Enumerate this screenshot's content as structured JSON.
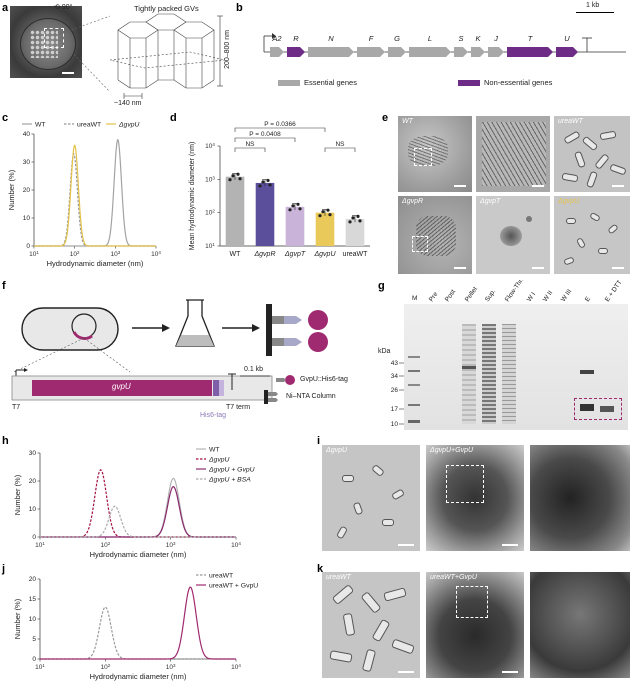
{
  "panels": {
    "a": "a",
    "b": "b",
    "c": "c",
    "d": "d",
    "e": "e",
    "f": "f",
    "g": "g",
    "h": "h",
    "i": "i",
    "j": "j",
    "k": "k"
  },
  "a": {
    "rotate": "90°",
    "gv_title": "Tightly packed GVs",
    "height_label": "200–800 nm",
    "width_label": "~140 nm"
  },
  "b": {
    "scale": "1 kb",
    "genes": [
      "A2",
      "R",
      "N",
      "F",
      "G",
      "L",
      "S",
      "K",
      "J",
      "T",
      "U"
    ],
    "legend_essential": "Essential genes",
    "legend_nonessential": "Non-essential genes",
    "colors": {
      "essential": "#a8a8a8",
      "nonessential": "#6d2c86"
    }
  },
  "c": {
    "chart_data": {
      "type": "line",
      "xscale": "log",
      "xlim": [
        10,
        10000
      ],
      "ylim": [
        0,
        40
      ],
      "xlabel": "Hydrodynamic diameter (nm)",
      "ylabel": "Number (%)",
      "xticks": [
        "10^1",
        "10^2",
        "10^3",
        "10^4"
      ],
      "yticks": [
        "0",
        "10",
        "20",
        "30",
        "40"
      ],
      "series": [
        {
          "name": "WT",
          "peak": 1150,
          "height": 38,
          "color": "#a3a3a3",
          "dash": false
        },
        {
          "name": "ureaWT",
          "peak": 95,
          "height": 33,
          "color": "#9a9a9a",
          "dash": true
        },
        {
          "name": "ΔgvpU",
          "peak": 100,
          "height": 36,
          "color": "#e3c24a",
          "dash": false
        }
      ]
    }
  },
  "d": {
    "chart_data": {
      "type": "bar",
      "yscale": "log",
      "ylim": [
        10,
        10000
      ],
      "ylabel": "Mean hydrodynamic diameter (nm)",
      "yticks": [
        "10^1",
        "10^2",
        "10^3",
        "10^4"
      ],
      "categories": [
        "WT",
        "ΔgvpR",
        "ΔgvpT",
        "ΔgvpU",
        "ureaWT"
      ],
      "values": [
        1200,
        780,
        150,
        100,
        65
      ],
      "colors": [
        "#b3b3b3",
        "#5b4f9c",
        "#c9b3d9",
        "#e8c959",
        "#d8d8d8"
      ],
      "annotations": [
        "P = 0.0366",
        "P = 0.0408",
        "NS",
        "NS"
      ]
    }
  },
  "e": {
    "captions": [
      "WT",
      "",
      "ureaWT",
      "ΔgvpR",
      "ΔgvpT",
      "ΔgvpU"
    ]
  },
  "f": {
    "gene": "gvpU",
    "his_tag": "His6-tag",
    "t7": "T7",
    "t7term": "T7 term",
    "scale": "0.1 kb",
    "legend_protein": "GvpU::His6-tag",
    "legend_column": "Ni–NTA Column"
  },
  "g": {
    "lanes": [
      "M",
      "Pre",
      "Post",
      "Pellet",
      "Sup.",
      "Flow-Thru",
      "W I",
      "W II",
      "W III",
      "E",
      "E + DTT"
    ],
    "kda_label": "kDa",
    "markers": [
      "43",
      "34",
      "26",
      "17",
      "10"
    ]
  },
  "h": {
    "chart_data": {
      "type": "line",
      "xscale": "log",
      "xlim": [
        10,
        10000
      ],
      "ylim": [
        0,
        30
      ],
      "xlabel": "Hydrodynamic diameter (nm)",
      "ylabel": "Number (%)",
      "xticks": [
        "10^1",
        "10^2",
        "10^3",
        "10^4"
      ],
      "yticks": [
        "0",
        "10",
        "20",
        "30"
      ],
      "series": [
        {
          "name": "WT",
          "peak": 1100,
          "height": 21,
          "color": "#b3b3b3",
          "dash": false
        },
        {
          "name": "ΔgvpU",
          "peak": 85,
          "height": 24,
          "color": "#a3123f",
          "dash": true
        },
        {
          "name": "ΔgvpU + GvpU",
          "peak": 1100,
          "height": 18,
          "color": "#8a2a6e",
          "dash": false
        },
        {
          "name": "ΔgvpU + BSA",
          "peak": 140,
          "height": 11,
          "color": "#aaaaaa",
          "dash": true
        }
      ]
    }
  },
  "i": {
    "captions": [
      "ΔgvpU",
      "ΔgvpU+GvpU",
      ""
    ]
  },
  "j": {
    "chart_data": {
      "type": "line",
      "xscale": "log",
      "xlim": [
        10,
        10000
      ],
      "ylim": [
        0,
        20
      ],
      "xlabel": "Hydrodynamic diameter (nm)",
      "ylabel": "Number (%)",
      "xticks": [
        "10^1",
        "10^2",
        "10^3",
        "10^4"
      ],
      "yticks": [
        "0",
        "5",
        "10",
        "15",
        "20"
      ],
      "series": [
        {
          "name": "ureaWT",
          "peak": 100,
          "height": 13,
          "color": "#999999",
          "dash": true
        },
        {
          "name": "ureaWT + GvpU",
          "peak": 2000,
          "height": 18,
          "color": "#a02a70",
          "dash": false
        }
      ]
    }
  },
  "k": {
    "captions": [
      "ureaWT",
      "ureaWT+GvpU",
      ""
    ]
  }
}
